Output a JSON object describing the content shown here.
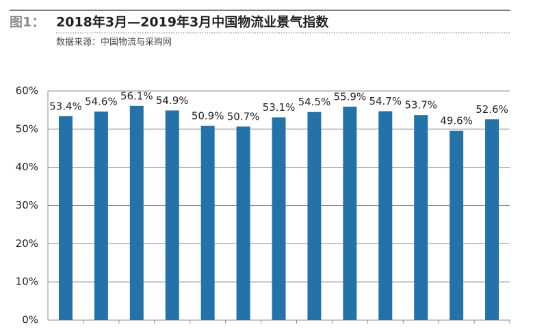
{
  "chart_data": {
    "type": "bar",
    "figure_label": "图1：",
    "title": "2018年3月—2019年3月中国物流业景气指数",
    "subtitle": "数据来源：中国物流与采购网",
    "categories": [
      null,
      null,
      null,
      null,
      null,
      null,
      null,
      null,
      null,
      null,
      null,
      null,
      null
    ],
    "values": [
      53.4,
      54.6,
      56.1,
      54.9,
      50.9,
      50.7,
      53.1,
      54.5,
      55.9,
      54.7,
      53.7,
      49.6,
      52.6
    ],
    "value_labels": [
      "53.4%",
      "54.6%",
      "56.1%",
      "54.9%",
      "50.9%",
      "50.7%",
      "53.1%",
      "54.5%",
      "55.9%",
      "54.7%",
      "53.7%",
      "49.6%",
      "52.6%"
    ],
    "color": "#2472aa",
    "ylim": [
      0,
      60
    ],
    "yticks": [
      {
        "value": 0,
        "label": "0%"
      },
      {
        "value": 10,
        "label": "10%"
      },
      {
        "value": 20,
        "label": "20%"
      },
      {
        "value": 30,
        "label": "30%"
      },
      {
        "value": 40,
        "label": "40%"
      },
      {
        "value": 50,
        "label": "50%"
      },
      {
        "value": 60,
        "label": "60%"
      }
    ],
    "grid": true
  }
}
